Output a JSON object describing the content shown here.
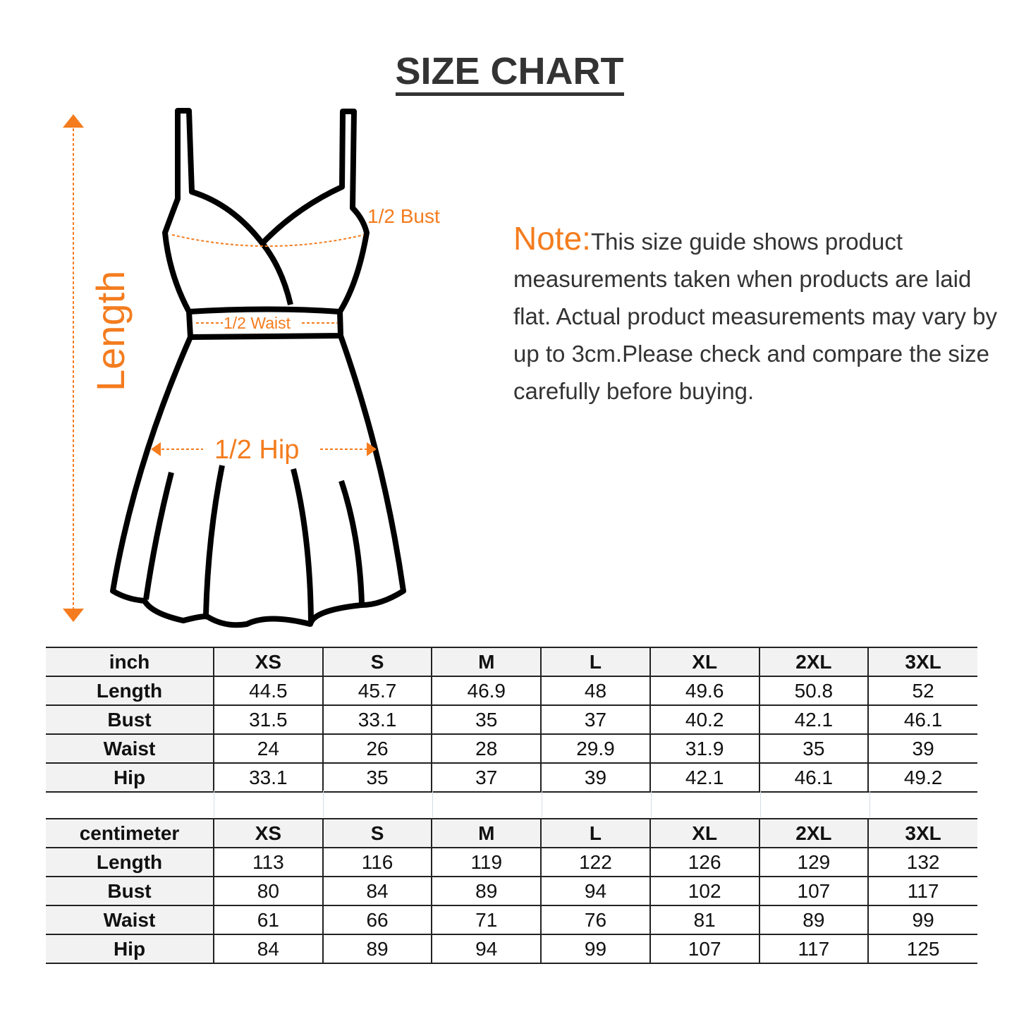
{
  "title": "SIZE CHART",
  "colors": {
    "accent": "#f47c1e",
    "text": "#333333",
    "header_bg": "#f2f2f2"
  },
  "diagram": {
    "length": "Length",
    "bust": "1/2 Bust",
    "waist": "1/2 Waist",
    "hip": "1/2 Hip"
  },
  "note": {
    "label": "Note:",
    "text": "This size guide shows product measurements taken when products are laid flat. Actual product measurements may vary by up to 3cm.Please check and compare the size carefully before buying."
  },
  "tables": [
    {
      "unit": "inch",
      "sizes": [
        "XS",
        "S",
        "M",
        "L",
        "XL",
        "2XL",
        "3XL"
      ],
      "rows": [
        {
          "label": "Length",
          "values": [
            "44.5",
            "45.7",
            "46.9",
            "48",
            "49.6",
            "50.8",
            "52"
          ]
        },
        {
          "label": "Bust",
          "values": [
            "31.5",
            "33.1",
            "35",
            "37",
            "40.2",
            "42.1",
            "46.1"
          ]
        },
        {
          "label": "Waist",
          "values": [
            "24",
            "26",
            "28",
            "29.9",
            "31.9",
            "35",
            "39"
          ]
        },
        {
          "label": "Hip",
          "values": [
            "33.1",
            "35",
            "37",
            "39",
            "42.1",
            "46.1",
            "49.2"
          ]
        }
      ]
    },
    {
      "unit": "centimeter",
      "sizes": [
        "XS",
        "S",
        "M",
        "L",
        "XL",
        "2XL",
        "3XL"
      ],
      "rows": [
        {
          "label": "Length",
          "values": [
            "113",
            "116",
            "119",
            "122",
            "126",
            "129",
            "132"
          ]
        },
        {
          "label": "Bust",
          "values": [
            "80",
            "84",
            "89",
            "94",
            "102",
            "107",
            "117"
          ]
        },
        {
          "label": "Waist",
          "values": [
            "61",
            "66",
            "71",
            "76",
            "81",
            "89",
            "99"
          ]
        },
        {
          "label": "Hip",
          "values": [
            "84",
            "89",
            "94",
            "99",
            "107",
            "117",
            "125"
          ]
        }
      ]
    }
  ]
}
